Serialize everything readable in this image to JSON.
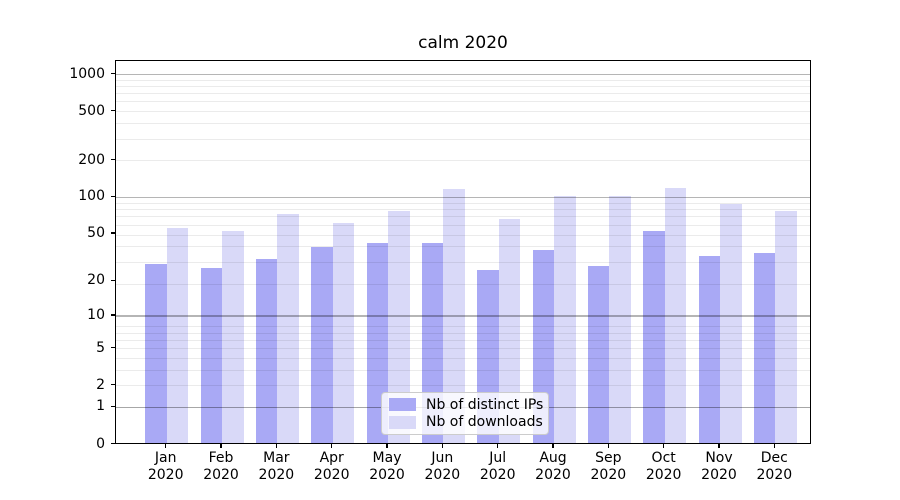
{
  "title": "calm 2020",
  "colors": {
    "ips_bar": "#a9a9f5",
    "downloads_bar": "#d9d9f8",
    "grid_major": "rgba(0,0,0,0.29)",
    "grid_minor": "rgba(0,0,0,0.08)",
    "spine": "#000000",
    "legend_border": "#cccccc",
    "legend_bg": "rgba(255,255,255,0.8)"
  },
  "legend": {
    "items": [
      {
        "label": "Nb of distinct IPs",
        "color": "ips_bar"
      },
      {
        "label": "Nb of downloads",
        "color": "downloads_bar"
      }
    ]
  },
  "chart_data": {
    "type": "bar",
    "title": "calm 2020",
    "categories": [
      "Jan 2020",
      "Feb 2020",
      "Mar 2020",
      "Apr 2020",
      "May 2020",
      "Jun 2020",
      "Jul 2020",
      "Aug 2020",
      "Sep 2020",
      "Oct 2020",
      "Nov 2020",
      "Dec 2020"
    ],
    "series": [
      {
        "name": "Nb of distinct IPs",
        "values": [
          28,
          26,
          31,
          39,
          42,
          42,
          25,
          37,
          27,
          53,
          33,
          35
        ]
      },
      {
        "name": "Nb of downloads",
        "values": [
          56,
          53,
          73,
          62,
          77,
          117,
          66,
          102,
          102,
          119,
          88,
          77
        ]
      }
    ],
    "xlabel": "",
    "ylabel": "",
    "yscale": "log1p",
    "ylim": [
      0,
      1284
    ],
    "y_tick_values": [
      0,
      1,
      2,
      5,
      10,
      20,
      50,
      100,
      200,
      500,
      1000
    ],
    "y_major_grid_values": [
      1,
      10,
      100,
      1000
    ],
    "grid": true,
    "legend_position": "lower center"
  }
}
